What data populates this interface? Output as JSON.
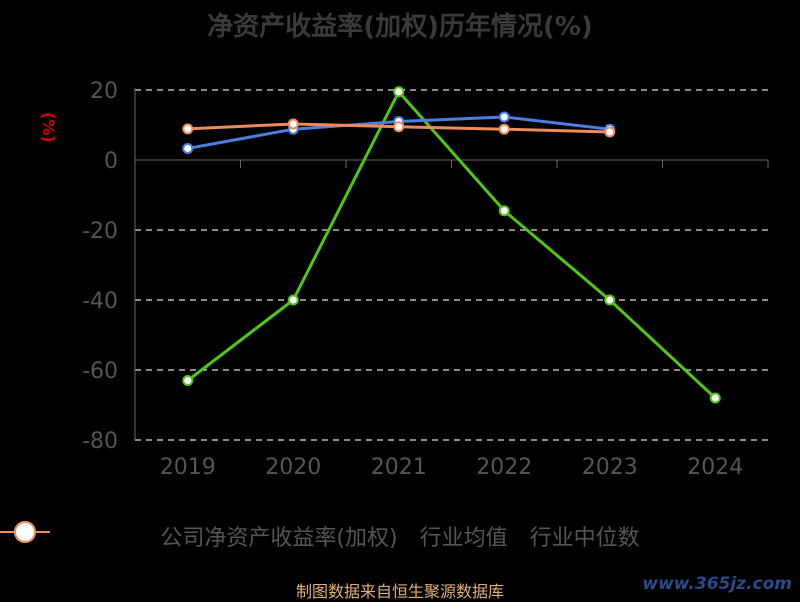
{
  "chart_data": {
    "type": "line",
    "title": "净资产收益率(加权)历年情况(%)",
    "ylabel": "(%)",
    "xlabel": "",
    "categories": [
      "2019",
      "2020",
      "2021",
      "2022",
      "2023",
      "2024"
    ],
    "ylim": [
      -80,
      20
    ],
    "yticks": [
      20,
      0,
      -20,
      -40,
      -60,
      -80
    ],
    "grid": true,
    "legend_position": "bottom",
    "series": [
      {
        "name": "公司净资产收益率(加权)",
        "color": "#52c41a",
        "values": [
          -63,
          -40,
          19.5,
          -14.5,
          -40,
          -68
        ]
      },
      {
        "name": "行业均值",
        "color": "#4a7fe0",
        "values": [
          3.3,
          8.8,
          11,
          12.3,
          8.8,
          null
        ]
      },
      {
        "name": "行业中位数",
        "color": "#f08a5d",
        "values": [
          8.9,
          10.3,
          9.5,
          8.8,
          8,
          null
        ]
      }
    ]
  },
  "source": "制图数据来自恒生聚源数据库",
  "watermark": "www.365jz.com"
}
